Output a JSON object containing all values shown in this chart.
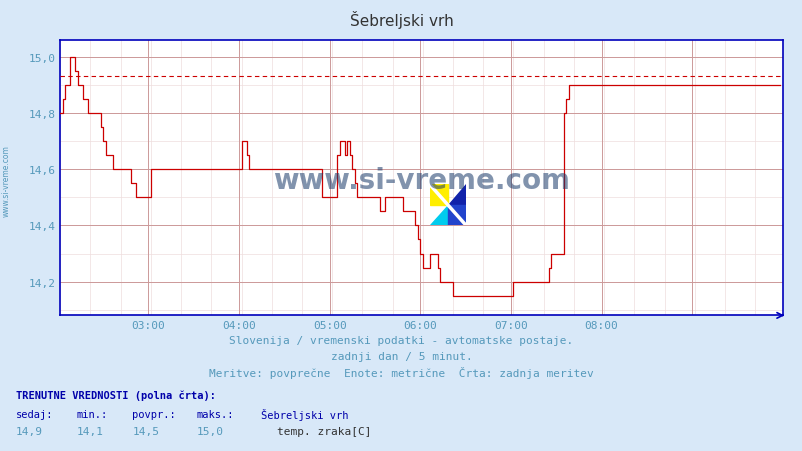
{
  "title": "Šebreljski vrh",
  "bg_color": "#d8e8f8",
  "plot_bg_color": "#ffffff",
  "line_color": "#cc0000",
  "dashed_line_color": "#cc0000",
  "grid_major_color": "#cc9999",
  "grid_minor_color": "#eedddd",
  "axis_color": "#0000bb",
  "text_color": "#5599bb",
  "title_color": "#444444",
  "watermark_color": "#1a3a6a",
  "xlim": [
    0,
    287
  ],
  "ylim": [
    14.08,
    15.06
  ],
  "yticks": [
    14.2,
    14.4,
    14.6,
    14.8,
    15.0
  ],
  "ytick_labels": [
    "14,2",
    "14,4",
    "14,6",
    "14,8",
    "15,0"
  ],
  "xtick_positions": [
    35,
    71,
    107,
    143,
    179,
    215,
    251,
    287
  ],
  "xtick_labels": [
    "03:00",
    "04:00",
    "05:00",
    "06:00",
    "07:00",
    "08:00",
    "",
    ""
  ],
  "dashed_y": 14.93,
  "subtitle1": "Slovenija / vremenski podatki - avtomatske postaje.",
  "subtitle2": "zadnji dan / 5 minut.",
  "subtitle3": "Meritve: povprečne  Enote: metrične  Črta: zadnja meritev",
  "footer_label": "TRENUTNE VREDNOSTI (polna črta):",
  "footer_cols": [
    "sedaj:",
    "min.:",
    "povpr.:",
    "maks.:",
    "Šebreljski vrh"
  ],
  "footer_vals": [
    "14,9",
    "14,1",
    "14,5",
    "15,0",
    "temp. zraka[C]"
  ],
  "watermark": "www.si-vreme.com",
  "side_text": "www.si-vreme.com",
  "data_y": [
    14.8,
    14.85,
    14.9,
    14.9,
    15.0,
    15.0,
    14.95,
    14.9,
    14.9,
    14.85,
    14.85,
    14.8,
    14.8,
    14.8,
    14.8,
    14.8,
    14.75,
    14.7,
    14.65,
    14.65,
    14.65,
    14.6,
    14.6,
    14.6,
    14.6,
    14.6,
    14.6,
    14.6,
    14.55,
    14.55,
    14.5,
    14.5,
    14.5,
    14.5,
    14.5,
    14.5,
    14.6,
    14.6,
    14.6,
    14.6,
    14.6,
    14.6,
    14.6,
    14.6,
    14.6,
    14.6,
    14.6,
    14.6,
    14.6,
    14.6,
    14.6,
    14.6,
    14.6,
    14.6,
    14.6,
    14.6,
    14.6,
    14.6,
    14.6,
    14.6,
    14.6,
    14.6,
    14.6,
    14.6,
    14.6,
    14.6,
    14.6,
    14.6,
    14.6,
    14.6,
    14.6,
    14.6,
    14.7,
    14.7,
    14.65,
    14.6,
    14.6,
    14.6,
    14.6,
    14.6,
    14.6,
    14.6,
    14.6,
    14.6,
    14.6,
    14.6,
    14.6,
    14.6,
    14.6,
    14.6,
    14.6,
    14.6,
    14.6,
    14.6,
    14.6,
    14.6,
    14.6,
    14.6,
    14.6,
    14.6,
    14.6,
    14.6,
    14.6,
    14.6,
    14.5,
    14.5,
    14.5,
    14.5,
    14.5,
    14.5,
    14.65,
    14.7,
    14.7,
    14.65,
    14.7,
    14.65,
    14.6,
    14.55,
    14.5,
    14.5,
    14.5,
    14.5,
    14.5,
    14.5,
    14.5,
    14.5,
    14.5,
    14.45,
    14.45,
    14.5,
    14.5,
    14.5,
    14.5,
    14.5,
    14.5,
    14.5,
    14.45,
    14.45,
    14.45,
    14.45,
    14.45,
    14.4,
    14.35,
    14.3,
    14.25,
    14.25,
    14.25,
    14.3,
    14.3,
    14.3,
    14.25,
    14.2,
    14.2,
    14.2,
    14.2,
    14.2,
    14.15,
    14.15,
    14.15,
    14.15,
    14.15,
    14.15,
    14.15,
    14.15,
    14.15,
    14.15,
    14.15,
    14.15,
    14.15,
    14.15,
    14.15,
    14.15,
    14.15,
    14.15,
    14.15,
    14.15,
    14.15,
    14.15,
    14.15,
    14.15,
    14.2,
    14.2,
    14.2,
    14.2,
    14.2,
    14.2,
    14.2,
    14.2,
    14.2,
    14.2,
    14.2,
    14.2,
    14.2,
    14.2,
    14.25,
    14.3,
    14.3,
    14.3,
    14.3,
    14.3,
    14.8,
    14.85,
    14.9,
    14.9,
    14.9,
    14.9,
    14.9,
    14.9,
    14.9,
    14.9,
    14.9,
    14.9,
    14.9,
    14.9,
    14.9,
    14.9,
    14.9,
    14.9,
    14.9,
    14.9,
    14.9,
    14.9,
    14.9,
    14.9,
    14.9,
    14.9,
    14.9,
    14.9,
    14.9,
    14.9,
    14.9,
    14.9,
    14.9,
    14.9,
    14.9,
    14.9,
    14.9,
    14.9,
    14.9,
    14.9,
    14.9,
    14.9,
    14.9,
    14.9,
    14.9,
    14.9,
    14.9,
    14.9,
    14.9,
    14.9,
    14.9,
    14.9,
    14.9,
    14.9,
    14.9,
    14.9,
    14.9,
    14.9,
    14.9,
    14.9,
    14.9,
    14.9,
    14.9,
    14.9,
    14.9,
    14.9,
    14.9,
    14.9,
    14.9,
    14.9,
    14.9,
    14.9,
    14.9,
    14.9,
    14.9,
    14.9,
    14.9,
    14.9,
    14.9,
    14.9,
    14.9,
    14.9,
    14.9,
    14.9,
    14.9,
    14.9,
    14.9
  ]
}
